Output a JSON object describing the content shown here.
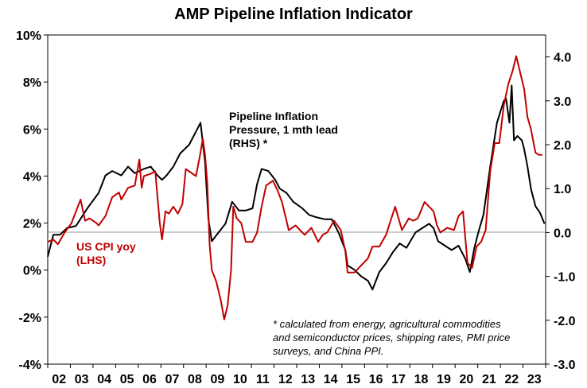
{
  "chart_data": {
    "type": "line",
    "title": "AMP Pipeline Inflation Indicator",
    "x_tick_labels": [
      "02",
      "03",
      "04",
      "05",
      "06",
      "07",
      "08",
      "09",
      "10",
      "11",
      "12",
      "13",
      "14",
      "15",
      "16",
      "17",
      "18",
      "19",
      "20",
      "21",
      "22",
      "23"
    ],
    "x_range": [
      2001.75,
      2023.75
    ],
    "y_left": {
      "range": [
        -4,
        10
      ],
      "ticks": [
        -4,
        -2,
        0,
        2,
        4,
        6,
        8,
        10
      ],
      "tick_labels": [
        "-4%",
        "-2%",
        "0%",
        "2%",
        "4%",
        "6%",
        "8%",
        "10%"
      ]
    },
    "y_right": {
      "range": [
        -3.0,
        4.5
      ],
      "ticks": [
        -3,
        -2,
        -1,
        0,
        1,
        2,
        3,
        4
      ],
      "tick_labels": [
        "-3.0",
        "-2.0",
        "-1.0",
        "0.0",
        "1.0",
        "2.0",
        "3.0",
        "4.0"
      ]
    },
    "series": [
      {
        "name": "Pipeline Inflation Pressure, 1 mth lead (RHS) *",
        "color": "#000000",
        "axis": "right",
        "points": [
          [
            2001.75,
            -0.55
          ],
          [
            2002.0,
            -0.05
          ],
          [
            2002.3,
            -0.05
          ],
          [
            2002.6,
            0.1
          ],
          [
            2003.0,
            0.15
          ],
          [
            2003.5,
            0.55
          ],
          [
            2004.0,
            0.9
          ],
          [
            2004.3,
            1.3
          ],
          [
            2004.6,
            1.4
          ],
          [
            2005.0,
            1.3
          ],
          [
            2005.3,
            1.5
          ],
          [
            2005.6,
            1.35
          ],
          [
            2006.0,
            1.45
          ],
          [
            2006.3,
            1.5
          ],
          [
            2006.6,
            1.3
          ],
          [
            2006.8,
            1.2
          ],
          [
            2007.0,
            1.3
          ],
          [
            2007.3,
            1.5
          ],
          [
            2007.6,
            1.8
          ],
          [
            2008.0,
            2.0
          ],
          [
            2008.3,
            2.3
          ],
          [
            2008.5,
            2.5
          ],
          [
            2008.7,
            1.6
          ],
          [
            2008.85,
            0.3
          ],
          [
            2009.0,
            -0.2
          ],
          [
            2009.3,
            0.0
          ],
          [
            2009.6,
            0.2
          ],
          [
            2009.9,
            0.7
          ],
          [
            2010.2,
            0.5
          ],
          [
            2010.5,
            0.5
          ],
          [
            2010.8,
            0.55
          ],
          [
            2011.0,
            1.1
          ],
          [
            2011.2,
            1.45
          ],
          [
            2011.5,
            1.4
          ],
          [
            2011.8,
            1.2
          ],
          [
            2012.0,
            1.0
          ],
          [
            2012.3,
            0.9
          ],
          [
            2012.6,
            0.7
          ],
          [
            2013.0,
            0.55
          ],
          [
            2013.3,
            0.4
          ],
          [
            2013.6,
            0.35
          ],
          [
            2014.0,
            0.3
          ],
          [
            2014.3,
            0.3
          ],
          [
            2014.6,
            0.0
          ],
          [
            2014.9,
            -0.4
          ],
          [
            2015.0,
            -0.75
          ],
          [
            2015.3,
            -0.85
          ],
          [
            2015.6,
            -1.0
          ],
          [
            2015.9,
            -1.1
          ],
          [
            2016.1,
            -1.3
          ],
          [
            2016.4,
            -0.9
          ],
          [
            2016.7,
            -0.7
          ],
          [
            2017.0,
            -0.45
          ],
          [
            2017.3,
            -0.25
          ],
          [
            2017.6,
            -0.35
          ],
          [
            2018.0,
            0.0
          ],
          [
            2018.3,
            0.1
          ],
          [
            2018.6,
            0.2
          ],
          [
            2018.8,
            0.1
          ],
          [
            2019.0,
            -0.2
          ],
          [
            2019.3,
            -0.3
          ],
          [
            2019.6,
            -0.4
          ],
          [
            2019.9,
            -0.3
          ],
          [
            2020.2,
            -0.6
          ],
          [
            2020.4,
            -0.9
          ],
          [
            2020.6,
            -0.35
          ],
          [
            2020.8,
            0.05
          ],
          [
            2021.0,
            0.4
          ],
          [
            2021.3,
            1.5
          ],
          [
            2021.6,
            2.5
          ],
          [
            2021.9,
            3.0
          ],
          [
            2022.0,
            3.05
          ],
          [
            2022.15,
            2.5
          ],
          [
            2022.25,
            3.35
          ],
          [
            2022.35,
            2.1
          ],
          [
            2022.5,
            2.2
          ],
          [
            2022.7,
            2.1
          ],
          [
            2022.8,
            1.9
          ],
          [
            2022.95,
            1.5
          ],
          [
            2023.1,
            1.0
          ],
          [
            2023.3,
            0.6
          ],
          [
            2023.5,
            0.45
          ],
          [
            2023.7,
            0.2
          ]
        ]
      },
      {
        "name": "US CPI yoy (LHS)",
        "color": "#c00000",
        "axis": "left",
        "points": [
          [
            2001.75,
            1.2
          ],
          [
            2002.0,
            1.3
          ],
          [
            2002.2,
            1.1
          ],
          [
            2002.5,
            1.6
          ],
          [
            2002.8,
            2.0
          ],
          [
            2003.0,
            2.5
          ],
          [
            2003.2,
            3.0
          ],
          [
            2003.4,
            2.1
          ],
          [
            2003.6,
            2.2
          ],
          [
            2003.9,
            2.0
          ],
          [
            2004.0,
            1.9
          ],
          [
            2004.3,
            2.3
          ],
          [
            2004.6,
            3.1
          ],
          [
            2004.9,
            3.3
          ],
          [
            2005.0,
            3.0
          ],
          [
            2005.3,
            3.5
          ],
          [
            2005.6,
            3.6
          ],
          [
            2005.8,
            4.7
          ],
          [
            2005.9,
            3.5
          ],
          [
            2006.0,
            4.0
          ],
          [
            2006.3,
            4.1
          ],
          [
            2006.5,
            4.2
          ],
          [
            2006.7,
            2.0
          ],
          [
            2006.8,
            1.3
          ],
          [
            2006.95,
            2.5
          ],
          [
            2007.1,
            2.4
          ],
          [
            2007.3,
            2.7
          ],
          [
            2007.5,
            2.4
          ],
          [
            2007.7,
            2.8
          ],
          [
            2007.85,
            4.3
          ],
          [
            2008.0,
            4.2
          ],
          [
            2008.3,
            4.0
          ],
          [
            2008.5,
            5.0
          ],
          [
            2008.6,
            5.6
          ],
          [
            2008.7,
            4.9
          ],
          [
            2008.8,
            3.7
          ],
          [
            2008.9,
            1.1
          ],
          [
            2009.0,
            0.0
          ],
          [
            2009.2,
            -0.5
          ],
          [
            2009.4,
            -1.3
          ],
          [
            2009.55,
            -2.1
          ],
          [
            2009.7,
            -1.5
          ],
          [
            2009.85,
            0.0
          ],
          [
            2009.95,
            2.7
          ],
          [
            2010.1,
            2.2
          ],
          [
            2010.3,
            2.0
          ],
          [
            2010.5,
            1.2
          ],
          [
            2010.8,
            1.2
          ],
          [
            2011.0,
            1.6
          ],
          [
            2011.2,
            2.7
          ],
          [
            2011.4,
            3.6
          ],
          [
            2011.7,
            3.8
          ],
          [
            2011.9,
            3.4
          ],
          [
            2012.1,
            2.9
          ],
          [
            2012.4,
            1.7
          ],
          [
            2012.7,
            1.9
          ],
          [
            2012.9,
            1.7
          ],
          [
            2013.1,
            1.5
          ],
          [
            2013.4,
            1.8
          ],
          [
            2013.7,
            1.2
          ],
          [
            2013.9,
            1.5
          ],
          [
            2014.1,
            1.6
          ],
          [
            2014.4,
            2.1
          ],
          [
            2014.7,
            1.7
          ],
          [
            2014.9,
            0.8
          ],
          [
            2015.0,
            -0.1
          ],
          [
            2015.3,
            -0.1
          ],
          [
            2015.6,
            0.2
          ],
          [
            2015.9,
            0.5
          ],
          [
            2016.1,
            1.0
          ],
          [
            2016.4,
            1.0
          ],
          [
            2016.7,
            1.5
          ],
          [
            2016.9,
            2.1
          ],
          [
            2017.1,
            2.7
          ],
          [
            2017.4,
            1.7
          ],
          [
            2017.7,
            2.2
          ],
          [
            2017.9,
            2.1
          ],
          [
            2018.1,
            2.2
          ],
          [
            2018.4,
            2.9
          ],
          [
            2018.6,
            2.7
          ],
          [
            2018.8,
            2.5
          ],
          [
            2018.95,
            1.9
          ],
          [
            2019.1,
            1.6
          ],
          [
            2019.4,
            1.8
          ],
          [
            2019.7,
            1.7
          ],
          [
            2019.9,
            2.3
          ],
          [
            2020.1,
            2.5
          ],
          [
            2020.3,
            0.3
          ],
          [
            2020.5,
            0.1
          ],
          [
            2020.7,
            1.0
          ],
          [
            2020.9,
            1.2
          ],
          [
            2021.1,
            1.7
          ],
          [
            2021.3,
            4.2
          ],
          [
            2021.5,
            5.4
          ],
          [
            2021.7,
            5.4
          ],
          [
            2021.9,
            7.0
          ],
          [
            2022.1,
            7.9
          ],
          [
            2022.3,
            8.5
          ],
          [
            2022.45,
            9.1
          ],
          [
            2022.6,
            8.5
          ],
          [
            2022.8,
            7.7
          ],
          [
            2022.95,
            6.5
          ],
          [
            2023.1,
            6.0
          ],
          [
            2023.3,
            5.0
          ],
          [
            2023.45,
            4.9
          ],
          [
            2023.6,
            4.9
          ]
        ]
      }
    ],
    "annotations": {
      "pipeline_label": [
        "Pipeline Inflation",
        "Pressure, 1 mth lead",
        "(RHS) *"
      ],
      "cpi_label": [
        "US CPI yoy",
        "(LHS)"
      ],
      "footnote": [
        "* calculated from energy, agricultural commodities",
        "and semiconductor prices, shipping rates, PMI price",
        "surveys, and China PPI."
      ]
    },
    "grid": false,
    "legend": "none"
  }
}
